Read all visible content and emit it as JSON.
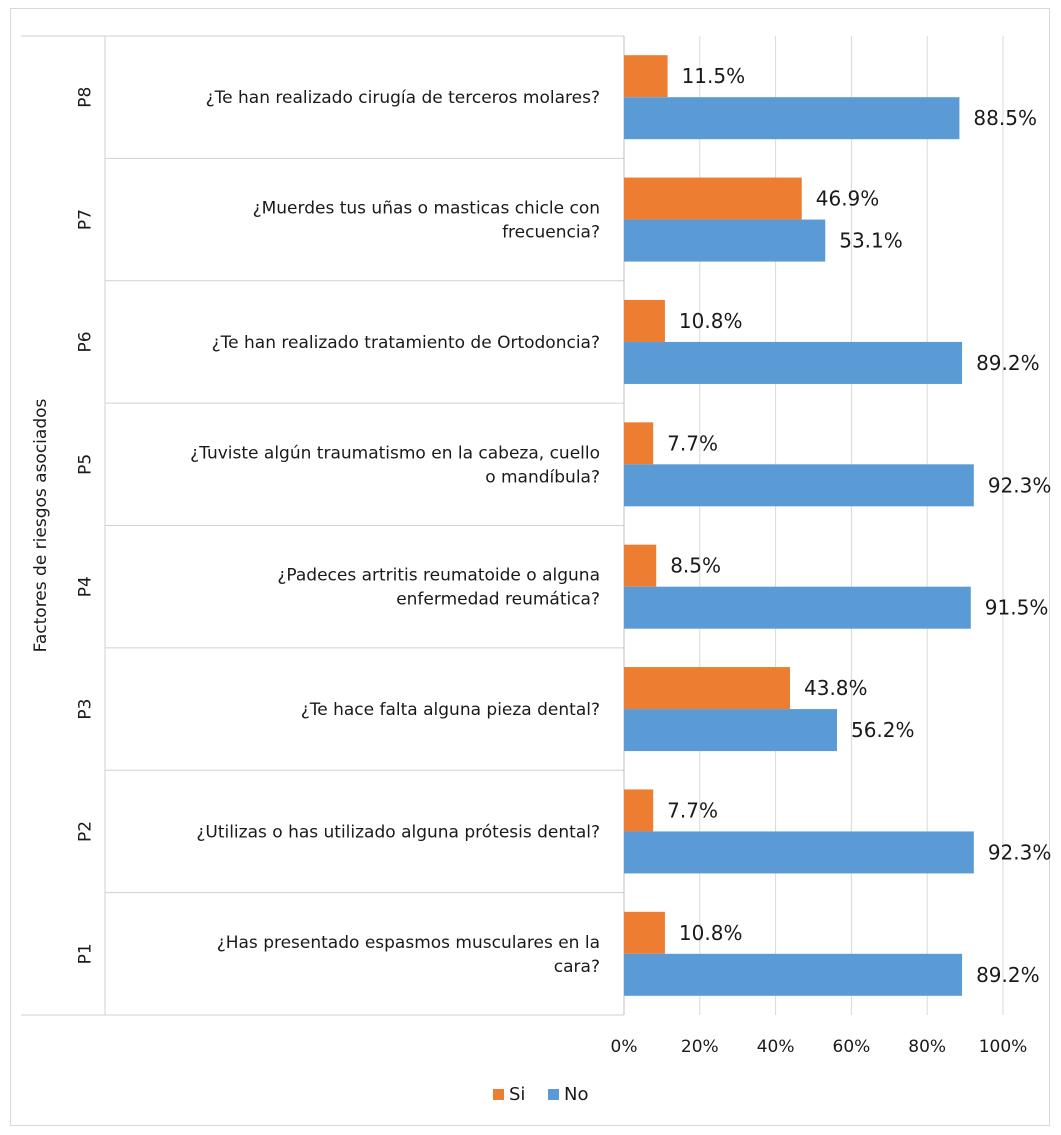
{
  "chart_data": {
    "type": "bar",
    "orientation": "horizontal",
    "ylabel": "Factores de riesgos asociados",
    "categories": [
      {
        "code": "P8",
        "question": [
          "¿Te han realizado cirugía de terceros molares?"
        ]
      },
      {
        "code": "P7",
        "question": [
          "¿Muerdes tus uñas o masticas chicle con",
          "frecuencia?"
        ]
      },
      {
        "code": "P6",
        "question": [
          "¿Te han realizado tratamiento de Ortodoncia?"
        ]
      },
      {
        "code": "P5",
        "question": [
          "¿Tuviste algún traumatismo en la cabeza, cuello",
          "o mandíbula?"
        ]
      },
      {
        "code": "P4",
        "question": [
          "¿Padeces artritis reumatoide o alguna",
          "enfermedad reumática?"
        ]
      },
      {
        "code": "P3",
        "question": [
          "¿Te hace falta alguna pieza dental?"
        ]
      },
      {
        "code": "P2",
        "question": [
          "¿Utilizas o has utilizado alguna prótesis dental?"
        ]
      },
      {
        "code": "P1",
        "question": [
          "¿Has presentado espasmos musculares en la",
          "cara?"
        ]
      }
    ],
    "series": [
      {
        "name": "Si",
        "color": "#ed7d31",
        "values": [
          11.5,
          46.9,
          10.8,
          7.7,
          8.5,
          43.8,
          7.7,
          10.8
        ],
        "labels": [
          "11.5%",
          "46.9%",
          "10.8%",
          "7.7%",
          "8.5%",
          "43.8%",
          "7.7%",
          "10.8%"
        ]
      },
      {
        "name": "No",
        "color": "#5b9bd5",
        "values": [
          88.5,
          53.1,
          89.2,
          92.3,
          91.5,
          56.2,
          92.3,
          89.2
        ],
        "labels": [
          "88.5%",
          "53.1%",
          "89.2%",
          "92.3%",
          "91.5%",
          "56.2%",
          "92.3%",
          "89.2%"
        ]
      }
    ],
    "xlim": [
      0,
      100
    ],
    "xticks": [
      "0%",
      "20%",
      "40%",
      "60%",
      "80%",
      "100%"
    ],
    "grid": true,
    "legend_position": "bottom"
  }
}
